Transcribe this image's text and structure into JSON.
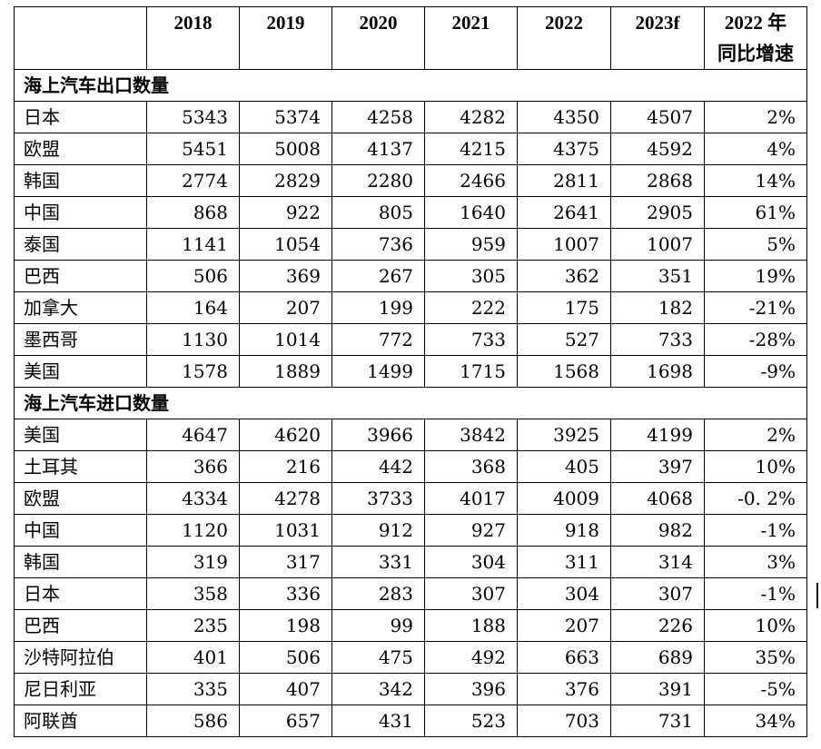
{
  "header": {
    "empty": "",
    "years": [
      "2018",
      "2019",
      "2020",
      "2021",
      "2022",
      "2023f"
    ],
    "growth_line1": "2022 年",
    "growth_line2": "同比增速"
  },
  "sections": [
    {
      "title": "海上汽车出口数量",
      "rows": [
        {
          "name": "日本",
          "values": [
            "5343",
            "5374",
            "4258",
            "4282",
            "4350",
            "4507"
          ],
          "growth": "2%"
        },
        {
          "name": "欧盟",
          "values": [
            "5451",
            "5008",
            "4137",
            "4215",
            "4375",
            "4592"
          ],
          "growth": "4%"
        },
        {
          "name": "韩国",
          "values": [
            "2774",
            "2829",
            "2280",
            "2466",
            "2811",
            "2868"
          ],
          "growth": "14%"
        },
        {
          "name": "中国",
          "values": [
            "868",
            "922",
            "805",
            "1640",
            "2641",
            "2905"
          ],
          "growth": "61%"
        },
        {
          "name": "泰国",
          "values": [
            "1141",
            "1054",
            "736",
            "959",
            "1007",
            "1007"
          ],
          "growth": "5%"
        },
        {
          "name": "巴西",
          "values": [
            "506",
            "369",
            "267",
            "305",
            "362",
            "351"
          ],
          "growth": "19%"
        },
        {
          "name": "加拿大",
          "values": [
            "164",
            "207",
            "199",
            "222",
            "175",
            "182"
          ],
          "growth": "-21%"
        },
        {
          "name": "墨西哥",
          "values": [
            "1130",
            "1014",
            "772",
            "733",
            "527",
            "733"
          ],
          "growth": "-28%"
        },
        {
          "name": "美国",
          "values": [
            "1578",
            "1889",
            "1499",
            "1715",
            "1568",
            "1698"
          ],
          "growth": "-9%"
        }
      ]
    },
    {
      "title": "海上汽车进口数量",
      "rows": [
        {
          "name": "美国",
          "values": [
            "4647",
            "4620",
            "3966",
            "3842",
            "3925",
            "4199"
          ],
          "growth": "2%"
        },
        {
          "name": "土耳其",
          "values": [
            "366",
            "216",
            "442",
            "368",
            "405",
            "397"
          ],
          "growth": "10%"
        },
        {
          "name": "欧盟",
          "values": [
            "4334",
            "4278",
            "3733",
            "4017",
            "4009",
            "4068"
          ],
          "growth": "-0. 2%"
        },
        {
          "name": "中国",
          "values": [
            "1120",
            "1031",
            "912",
            "927",
            "918",
            "982"
          ],
          "growth": "-1%"
        },
        {
          "name": "韩国",
          "values": [
            "319",
            "317",
            "331",
            "304",
            "311",
            "314"
          ],
          "growth": "3%"
        },
        {
          "name": "日本",
          "values": [
            "358",
            "336",
            "283",
            "307",
            "304",
            "307"
          ],
          "growth": "-1%"
        },
        {
          "name": "巴西",
          "values": [
            "235",
            "198",
            "99",
            "188",
            "207",
            "226"
          ],
          "growth": "10%"
        },
        {
          "name": "沙特阿拉伯",
          "values": [
            "401",
            "506",
            "475",
            "492",
            "663",
            "689"
          ],
          "growth": "35%"
        },
        {
          "name": "尼日利亚",
          "values": [
            "335",
            "407",
            "342",
            "396",
            "376",
            "391"
          ],
          "growth": "-5%"
        },
        {
          "name": "阿联酋",
          "values": [
            "586",
            "657",
            "431",
            "523",
            "703",
            "731"
          ],
          "growth": "34%"
        }
      ]
    }
  ]
}
